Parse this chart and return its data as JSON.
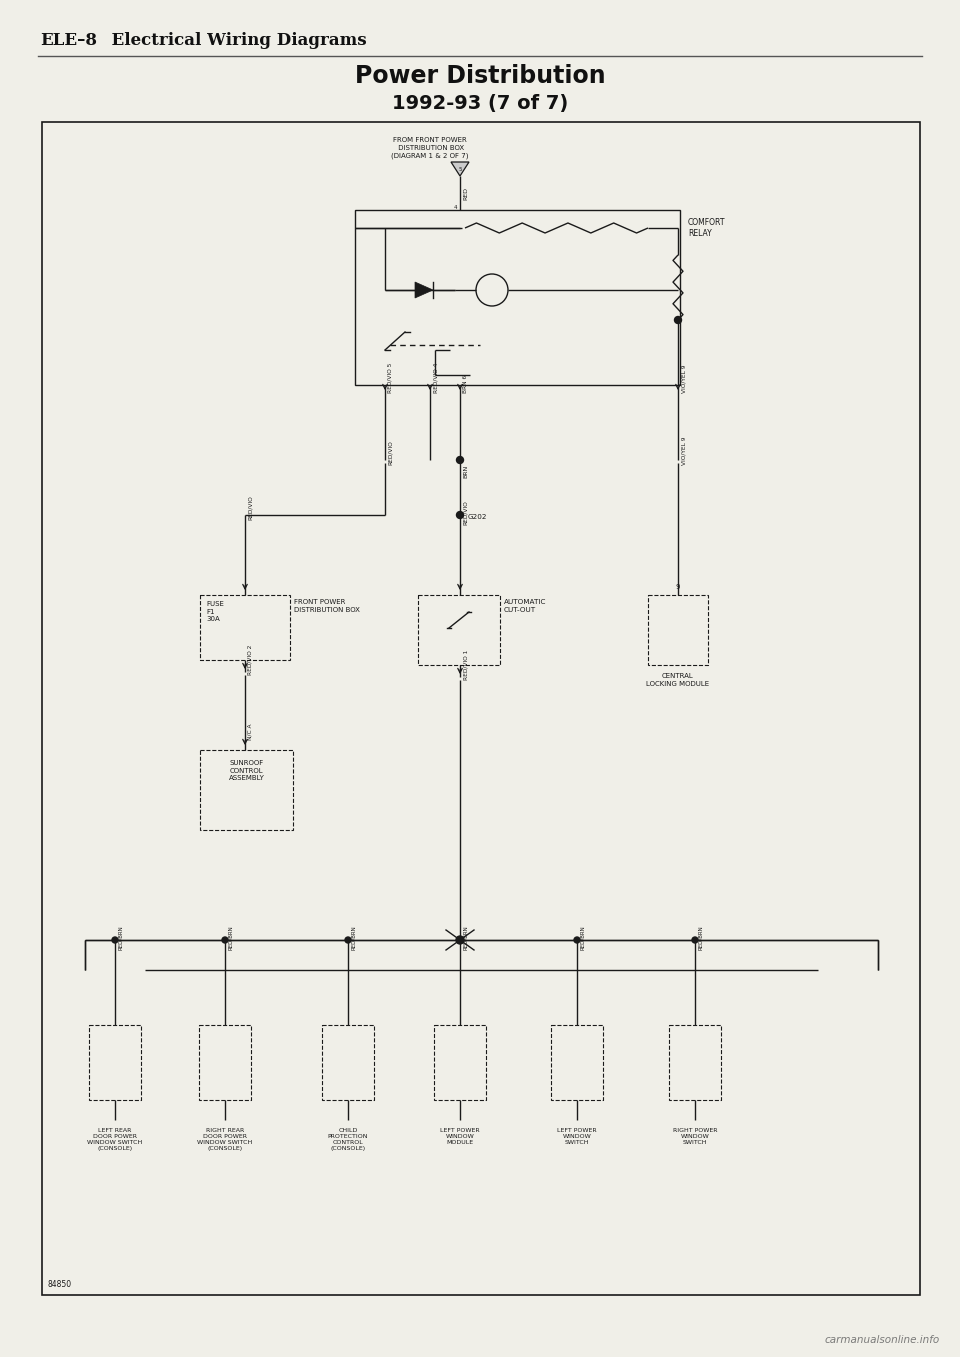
{
  "page_title_part1": "ELE–8",
  "page_title_part2": "Electrical Wiring Diagrams",
  "diagram_title": "Power Distribution",
  "diagram_subtitle": "1992-93 (7 of 7)",
  "bg_color": "#f0efe8",
  "box_bg": "#f5f4ee",
  "line_color": "#1a1a1a",
  "footer_text": "84850",
  "watermark_text": "carmanualsonline.info",
  "labels": {
    "from_power": "FROM FRONT POWER\n DISTRIBUTION BOX\n(DIAGRAM 1 & 2 OF 7)",
    "comfort_relay": "COMFORT\nRELAY",
    "front_power_box": "FRONT POWER\nDISTRIBUTION BOX",
    "fuse": "FUSE\nF1\n30A",
    "auto_cutout": "AUTOMATIC\nCUT-OUT",
    "central_locking": "CENTRAL\nLOCKING MODULE",
    "g202": "G202",
    "sunroof": "SUNROOF\nCONTROL\nASSEMBLY",
    "left_rear_door": "LEFT REAR\nDOOR POWER\nWINDOW SWITCH\n(CONSOLE)",
    "right_rear_door": "RIGHT REAR\nDOOR POWER\nWINDOW SWITCH\n(CONSOLE)",
    "child_protection": "CHILD\nPROTECTION\nCONTROL\n(CONSOLE)",
    "left_power_window_module": "LEFT POWER\nWINDOW\nMODULE",
    "left_power_window_switch": "LEFT POWER\nWINDOW\nSWITCH",
    "right_power_window_switch": "RIGHT POWER\nWINDOW\nSWITCH"
  }
}
